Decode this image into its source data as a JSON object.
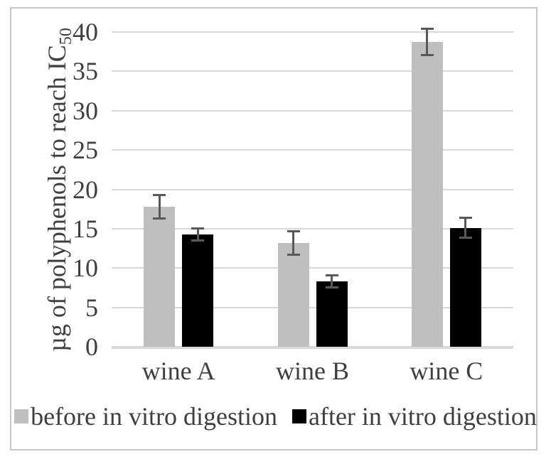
{
  "chart_data": {
    "type": "bar",
    "title": "",
    "categories": [
      "wine A",
      "wine B",
      "wine C"
    ],
    "series": [
      {
        "name": "before in vitro digestion",
        "color": "#bfbfbf",
        "values": [
          17.8,
          13.2,
          38.7
        ],
        "errors": [
          1.6,
          1.6,
          1.8
        ]
      },
      {
        "name": "after in vitro digestion",
        "color": "#000000",
        "values": [
          14.3,
          8.3,
          15.1
        ],
        "errors": [
          0.9,
          0.9,
          1.4
        ]
      }
    ],
    "xlabel": "",
    "ylabel": "µg of polyphenols to reach IC",
    "ylabel_subscript": "50",
    "ylim": [
      0,
      40
    ],
    "yticks": [
      0,
      5,
      10,
      15,
      20,
      25,
      30,
      35,
      40
    ],
    "grid": true,
    "legend_position": "bottom",
    "colors": {
      "gridline": "#d9d9d9",
      "axis_line": "#d9d9d9",
      "error_bar": "#595959",
      "text": "#3f3f3f",
      "frame_border": "#c8c8c8",
      "background": "#ffffff"
    }
  }
}
